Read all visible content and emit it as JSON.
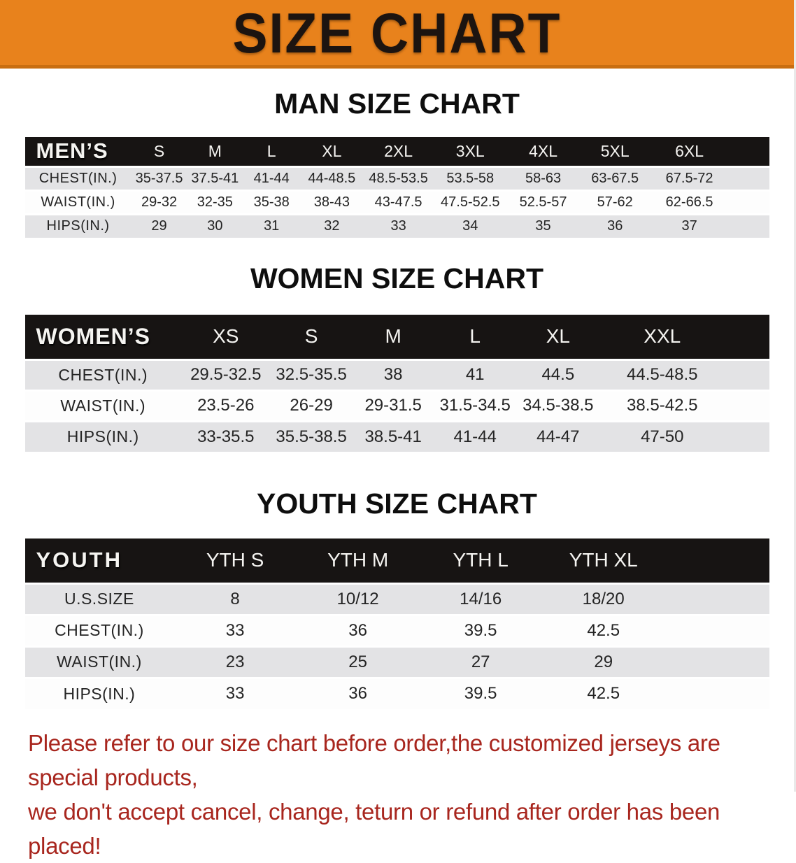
{
  "banner": {
    "title": "SIZE CHART"
  },
  "colors": {
    "banner_bg": "#e8821c",
    "banner_border": "#c96e10",
    "header_bar_bg": "#171413",
    "header_bar_text": "#f5f4f1",
    "row_stripe": "#e3e3e5",
    "note_text": "#a8261e"
  },
  "sections": {
    "men": {
      "heading": "MAN SIZE CHART",
      "table": {
        "label": "MEN’S",
        "columns": [
          "S",
          "M",
          "L",
          "XL",
          "2XL",
          "3XL",
          "4XL",
          "5XL",
          "6XL"
        ],
        "rows": [
          {
            "label": "CHEST(IN.)",
            "values": [
              "35-37.5",
              "37.5-41",
              "41-44",
              "44-48.5",
              "48.5-53.5",
              "53.5-58",
              "58-63",
              "63-67.5",
              "67.5-72"
            ]
          },
          {
            "label": "WAIST(IN.)",
            "values": [
              "29-32",
              "32-35",
              "35-38",
              "38-43",
              "43-47.5",
              "47.5-52.5",
              "52.5-57",
              "57-62",
              "62-66.5"
            ]
          },
          {
            "label": "HIPS(IN.)",
            "values": [
              "29",
              "30",
              "31",
              "32",
              "33",
              "34",
              "35",
              "36",
              "37"
            ]
          }
        ]
      }
    },
    "women": {
      "heading": "WOMEN SIZE CHART",
      "table": {
        "label": "WOMEN’S",
        "columns": [
          "XS",
          "S",
          "M",
          "L",
          "XL",
          "XXL"
        ],
        "rows": [
          {
            "label": "CHEST(IN.)",
            "values": [
              "29.5-32.5",
              "32.5-35.5",
              "38",
              "41",
              "44.5",
              "44.5-48.5"
            ]
          },
          {
            "label": "WAIST(IN.)",
            "values": [
              "23.5-26",
              "26-29",
              "29-31.5",
              "31.5-34.5",
              "34.5-38.5",
              "38.5-42.5"
            ]
          },
          {
            "label": "HIPS(IN.)",
            "values": [
              "33-35.5",
              "35.5-38.5",
              "38.5-41",
              "41-44",
              "44-47",
              "47-50"
            ]
          }
        ]
      }
    },
    "youth": {
      "heading": "YOUTH SIZE CHART",
      "table": {
        "label": "YOUTH",
        "columns": [
          "YTH S",
          "YTH M",
          "YTH L",
          "YTH XL"
        ],
        "rows": [
          {
            "label": "U.S.SIZE",
            "values": [
              "8",
              "10/12",
              "14/16",
              "18/20"
            ]
          },
          {
            "label": "CHEST(IN.)",
            "values": [
              "33",
              "36",
              "39.5",
              "42.5"
            ]
          },
          {
            "label": "WAIST(IN.)",
            "values": [
              "23",
              "25",
              "27",
              "29"
            ]
          },
          {
            "label": "HIPS(IN.)",
            "values": [
              "33",
              "36",
              "39.5",
              "42.5"
            ]
          }
        ]
      }
    }
  },
  "note": {
    "line1": "Please refer to our size chart before order,the customized jerseys are special products,",
    "line2": "we don't accept cancel, change, teturn or refund after order has been placed!"
  }
}
